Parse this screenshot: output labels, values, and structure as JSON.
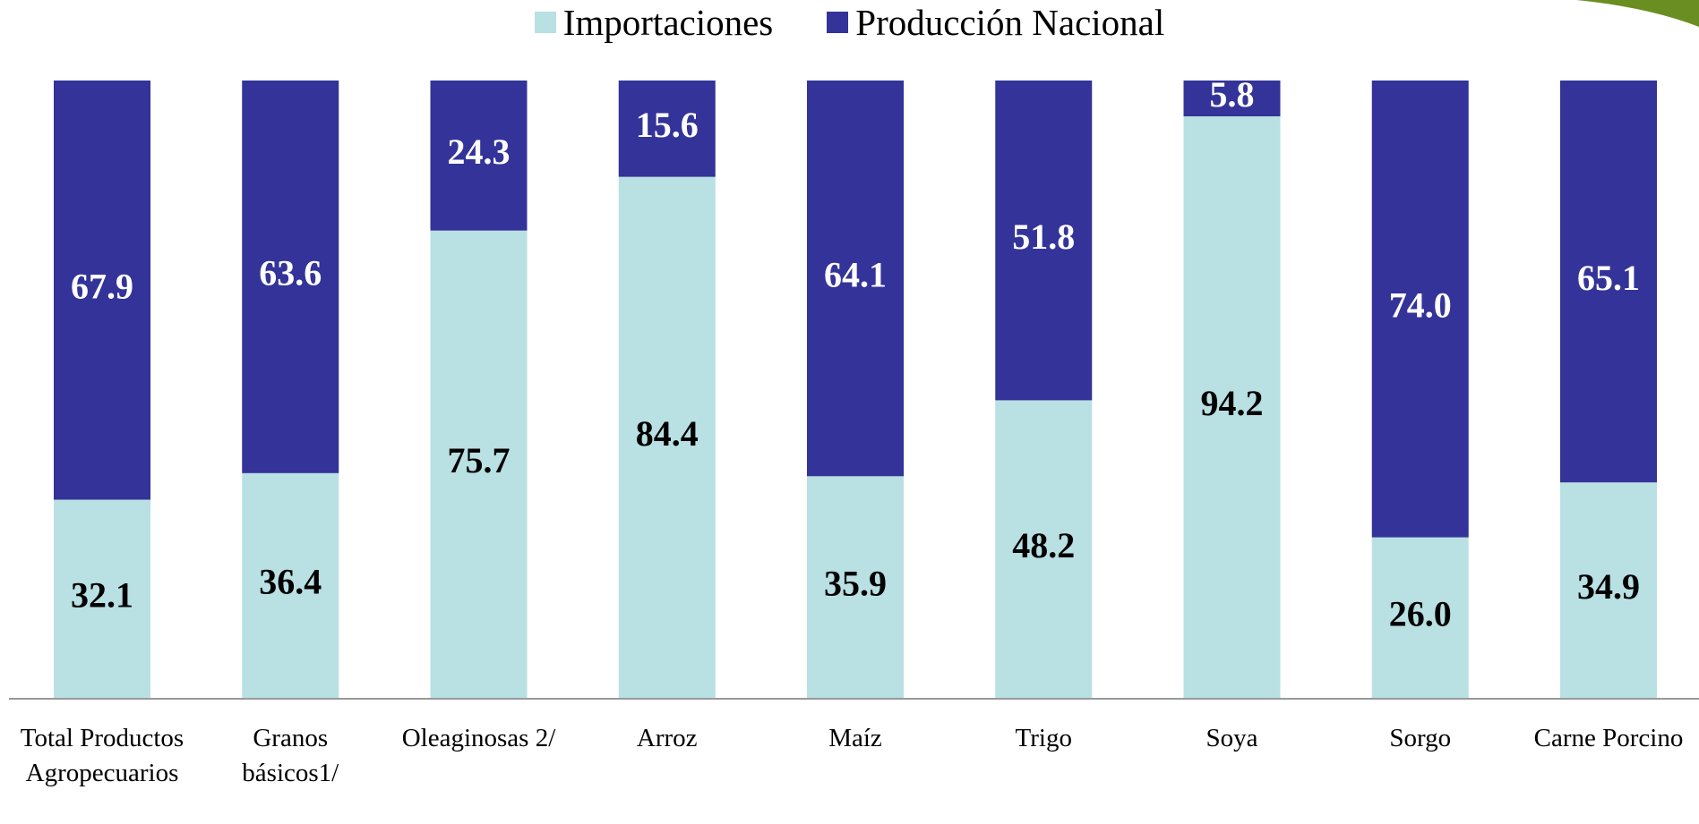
{
  "chart_data": {
    "type": "stacked-bar",
    "categories": [
      "Total Productos Agropecuarios",
      "Granos básicos1/",
      "Oleaginosas 2/",
      "Arroz",
      "Maíz",
      "Trigo",
      "Soya",
      "Sorgo",
      "Carne Porcino"
    ],
    "series": [
      {
        "name": "Importaciones",
        "color": "#b9e0e3",
        "values": [
          32.1,
          36.4,
          75.7,
          84.4,
          35.9,
          48.2,
          94.2,
          26.0,
          34.9
        ],
        "value_labels": [
          "32.1",
          "36.4",
          "75.7",
          "84.4",
          "35.9",
          "48.2",
          "94.2",
          "26.0",
          "34.9"
        ]
      },
      {
        "name": "Producción Nacional",
        "color": "#333399",
        "values": [
          67.9,
          63.6,
          24.3,
          15.6,
          64.1,
          51.8,
          5.8,
          74.0,
          65.1
        ],
        "value_labels": [
          "67.9",
          "63.6",
          "24.3",
          "15.6",
          "64.1",
          "51.8",
          "5.8",
          "74.0",
          "65.1"
        ]
      }
    ],
    "ylim": [
      0,
      100
    ],
    "legend": "top"
  }
}
